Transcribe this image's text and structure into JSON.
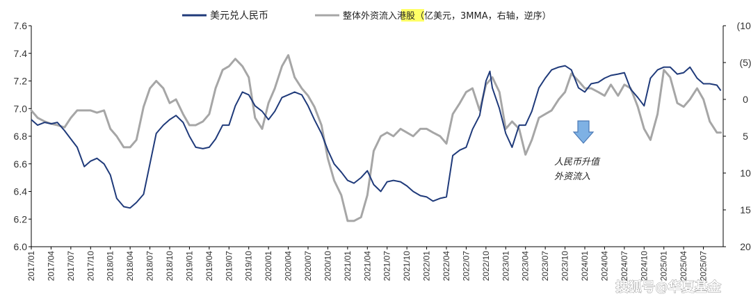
{
  "chart_data": {
    "type": "line",
    "title": "",
    "legend": {
      "placement": "top",
      "series1_label": "美元兑人民币",
      "series2_prefix": "整体外资流入",
      "series2_highlight": "港股",
      "series2_suffix": "（亿美元，3MMA，右轴，逆序）",
      "highlight_color": "#ffff66"
    },
    "left_axis": {
      "ylim": [
        6.0,
        7.6
      ],
      "ticks": [
        "6.0",
        "6.2",
        "6.4",
        "6.6",
        "6.8",
        "7.0",
        "7.2",
        "7.4",
        "7.6"
      ]
    },
    "right_axis": {
      "ylim_inverted": [
        -10,
        20
      ],
      "ticks": [
        "(10)",
        "(5)",
        "0",
        "5",
        "10",
        "15",
        "20"
      ],
      "tick_values": [
        -10,
        -5,
        0,
        5,
        10,
        15,
        20
      ]
    },
    "x_range": [
      2017.0,
      2025.75
    ],
    "x_ticks": [
      "2017/01",
      "2017/04",
      "2017/07",
      "2017/10",
      "2018/01",
      "2018/04",
      "2018/07",
      "2018/10",
      "2019/01",
      "2019/04",
      "2019/07",
      "2019/10",
      "2020/01",
      "2020/04",
      "2020/07",
      "2020/10",
      "2021/01",
      "2021/04",
      "2021/07",
      "2021/10",
      "2022/01",
      "2022/04",
      "2022/07",
      "2022/10",
      "2023/01",
      "2023/04",
      "2023/07",
      "2023/10",
      "2024/01",
      "2024/04",
      "2024/07",
      "2024/10",
      "2025/01",
      "2025/04",
      "2025/07"
    ],
    "series": [
      {
        "name": "美元兑人民币",
        "axis": "left",
        "color": "#1f3a7a",
        "points": [
          [
            2017.0,
            6.92
          ],
          [
            2017.08,
            6.88
          ],
          [
            2017.17,
            6.9
          ],
          [
            2017.25,
            6.89
          ],
          [
            2017.33,
            6.9
          ],
          [
            2017.42,
            6.84
          ],
          [
            2017.5,
            6.78
          ],
          [
            2017.58,
            6.72
          ],
          [
            2017.67,
            6.58
          ],
          [
            2017.75,
            6.62
          ],
          [
            2017.83,
            6.64
          ],
          [
            2017.92,
            6.6
          ],
          [
            2018.0,
            6.52
          ],
          [
            2018.08,
            6.35
          ],
          [
            2018.17,
            6.29
          ],
          [
            2018.25,
            6.28
          ],
          [
            2018.33,
            6.32
          ],
          [
            2018.42,
            6.38
          ],
          [
            2018.5,
            6.6
          ],
          [
            2018.58,
            6.82
          ],
          [
            2018.67,
            6.88
          ],
          [
            2018.75,
            6.92
          ],
          [
            2018.83,
            6.95
          ],
          [
            2018.92,
            6.9
          ],
          [
            2019.0,
            6.8
          ],
          [
            2019.08,
            6.72
          ],
          [
            2019.17,
            6.71
          ],
          [
            2019.25,
            6.72
          ],
          [
            2019.33,
            6.78
          ],
          [
            2019.42,
            6.88
          ],
          [
            2019.5,
            6.88
          ],
          [
            2019.58,
            7.02
          ],
          [
            2019.67,
            7.12
          ],
          [
            2019.75,
            7.1
          ],
          [
            2019.83,
            7.02
          ],
          [
            2019.92,
            6.98
          ],
          [
            2020.0,
            6.92
          ],
          [
            2020.08,
            6.98
          ],
          [
            2020.17,
            7.08
          ],
          [
            2020.25,
            7.1
          ],
          [
            2020.33,
            7.12
          ],
          [
            2020.42,
            7.1
          ],
          [
            2020.5,
            7.02
          ],
          [
            2020.58,
            6.92
          ],
          [
            2020.67,
            6.82
          ],
          [
            2020.75,
            6.7
          ],
          [
            2020.83,
            6.6
          ],
          [
            2020.92,
            6.54
          ],
          [
            2021.0,
            6.48
          ],
          [
            2021.08,
            6.46
          ],
          [
            2021.17,
            6.5
          ],
          [
            2021.25,
            6.55
          ],
          [
            2021.33,
            6.45
          ],
          [
            2021.42,
            6.4
          ],
          [
            2021.5,
            6.47
          ],
          [
            2021.58,
            6.48
          ],
          [
            2021.67,
            6.47
          ],
          [
            2021.75,
            6.44
          ],
          [
            2021.83,
            6.4
          ],
          [
            2021.92,
            6.37
          ],
          [
            2022.0,
            6.36
          ],
          [
            2022.08,
            6.33
          ],
          [
            2022.17,
            6.35
          ],
          [
            2022.25,
            6.36
          ],
          [
            2022.33,
            6.66
          ],
          [
            2022.42,
            6.7
          ],
          [
            2022.5,
            6.72
          ],
          [
            2022.58,
            6.85
          ],
          [
            2022.67,
            6.95
          ],
          [
            2022.75,
            7.2
          ],
          [
            2022.8,
            7.27
          ],
          [
            2022.83,
            7.15
          ],
          [
            2022.92,
            7.0
          ],
          [
            2023.0,
            6.82
          ],
          [
            2023.08,
            6.72
          ],
          [
            2023.17,
            6.88
          ],
          [
            2023.25,
            6.88
          ],
          [
            2023.33,
            6.98
          ],
          [
            2023.42,
            7.15
          ],
          [
            2023.5,
            7.22
          ],
          [
            2023.58,
            7.28
          ],
          [
            2023.67,
            7.3
          ],
          [
            2023.75,
            7.31
          ],
          [
            2023.83,
            7.28
          ],
          [
            2023.92,
            7.15
          ],
          [
            2024.0,
            7.12
          ],
          [
            2024.08,
            7.18
          ],
          [
            2024.17,
            7.19
          ],
          [
            2024.25,
            7.22
          ],
          [
            2024.33,
            7.24
          ],
          [
            2024.42,
            7.25
          ],
          [
            2024.5,
            7.26
          ],
          [
            2024.58,
            7.14
          ],
          [
            2024.67,
            7.08
          ],
          [
            2024.75,
            7.02
          ],
          [
            2024.83,
            7.22
          ],
          [
            2024.92,
            7.28
          ],
          [
            2025.0,
            7.3
          ],
          [
            2025.08,
            7.3
          ],
          [
            2025.17,
            7.25
          ],
          [
            2025.25,
            7.26
          ],
          [
            2025.33,
            7.3
          ],
          [
            2025.42,
            7.22
          ],
          [
            2025.5,
            7.18
          ],
          [
            2025.58,
            7.18
          ],
          [
            2025.67,
            7.17
          ],
          [
            2025.72,
            7.13
          ]
        ]
      },
      {
        "name": "整体外资流入港股（亿美元，3MMA，右轴，逆序）",
        "axis": "right",
        "color": "#a6a6a6",
        "points": [
          [
            2017.0,
            1.5
          ],
          [
            2017.08,
            2.5
          ],
          [
            2017.17,
            3.0
          ],
          [
            2017.25,
            3.3
          ],
          [
            2017.33,
            3.5
          ],
          [
            2017.42,
            3.8
          ],
          [
            2017.5,
            2.5
          ],
          [
            2017.58,
            1.5
          ],
          [
            2017.67,
            1.5
          ],
          [
            2017.75,
            1.5
          ],
          [
            2017.83,
            1.8
          ],
          [
            2017.92,
            1.5
          ],
          [
            2018.0,
            4.0
          ],
          [
            2018.08,
            5.0
          ],
          [
            2018.17,
            6.5
          ],
          [
            2018.25,
            6.5
          ],
          [
            2018.33,
            5.5
          ],
          [
            2018.42,
            1.0
          ],
          [
            2018.5,
            -1.5
          ],
          [
            2018.58,
            -2.5
          ],
          [
            2018.67,
            -1.5
          ],
          [
            2018.75,
            0.5
          ],
          [
            2018.83,
            0.0
          ],
          [
            2018.92,
            2.0
          ],
          [
            2019.0,
            3.5
          ],
          [
            2019.08,
            3.5
          ],
          [
            2019.17,
            3.0
          ],
          [
            2019.25,
            2.0
          ],
          [
            2019.33,
            -1.5
          ],
          [
            2019.42,
            -4.0
          ],
          [
            2019.5,
            -4.5
          ],
          [
            2019.58,
            -5.5
          ],
          [
            2019.67,
            -4.5
          ],
          [
            2019.75,
            -3.0
          ],
          [
            2019.83,
            2.5
          ],
          [
            2019.92,
            4.0
          ],
          [
            2020.0,
            0.5
          ],
          [
            2020.08,
            -1.5
          ],
          [
            2020.17,
            -4.5
          ],
          [
            2020.25,
            -6.0
          ],
          [
            2020.33,
            -3.0
          ],
          [
            2020.42,
            -1.5
          ],
          [
            2020.5,
            -0.5
          ],
          [
            2020.58,
            1.0
          ],
          [
            2020.67,
            3.5
          ],
          [
            2020.75,
            8.0
          ],
          [
            2020.83,
            11.0
          ],
          [
            2020.92,
            13.0
          ],
          [
            2021.0,
            16.5
          ],
          [
            2021.08,
            16.5
          ],
          [
            2021.17,
            16.0
          ],
          [
            2021.25,
            13.0
          ],
          [
            2021.33,
            7.0
          ],
          [
            2021.42,
            5.0
          ],
          [
            2021.5,
            4.5
          ],
          [
            2021.58,
            5.0
          ],
          [
            2021.67,
            4.0
          ],
          [
            2021.75,
            4.5
          ],
          [
            2021.83,
            5.0
          ],
          [
            2021.92,
            4.0
          ],
          [
            2022.0,
            4.0
          ],
          [
            2022.08,
            4.5
          ],
          [
            2022.17,
            5.0
          ],
          [
            2022.25,
            6.0
          ],
          [
            2022.33,
            2.0
          ],
          [
            2022.42,
            0.5
          ],
          [
            2022.5,
            -1.0
          ],
          [
            2022.58,
            -1.5
          ],
          [
            2022.67,
            1.5
          ],
          [
            2022.75,
            -2.0
          ],
          [
            2022.83,
            -3.0
          ],
          [
            2022.92,
            -1.0
          ],
          [
            2023.0,
            4.0
          ],
          [
            2023.08,
            3.0
          ],
          [
            2023.17,
            4.0
          ],
          [
            2023.25,
            7.5
          ],
          [
            2023.33,
            5.5
          ],
          [
            2023.42,
            2.5
          ],
          [
            2023.5,
            2.0
          ],
          [
            2023.58,
            1.5
          ],
          [
            2023.67,
            0.0
          ],
          [
            2023.75,
            -1.0
          ],
          [
            2023.83,
            -3.5
          ],
          [
            2023.92,
            -2.5
          ],
          [
            2024.0,
            -1.5
          ],
          [
            2024.08,
            -1.5
          ],
          [
            2024.17,
            -1.0
          ],
          [
            2024.25,
            -0.5
          ],
          [
            2024.33,
            -2.0
          ],
          [
            2024.42,
            -0.5
          ],
          [
            2024.5,
            -2.0
          ],
          [
            2024.58,
            -1.5
          ],
          [
            2024.67,
            1.0
          ],
          [
            2024.75,
            4.0
          ],
          [
            2024.83,
            5.5
          ],
          [
            2024.92,
            2.0
          ],
          [
            2025.0,
            -4.0
          ],
          [
            2025.08,
            -3.0
          ],
          [
            2025.17,
            0.5
          ],
          [
            2025.25,
            1.0
          ],
          [
            2025.33,
            0.0
          ],
          [
            2025.42,
            -1.5
          ],
          [
            2025.5,
            0.0
          ],
          [
            2025.58,
            3.0
          ],
          [
            2025.67,
            4.5
          ],
          [
            2025.72,
            4.5
          ]
        ]
      }
    ],
    "annotation": {
      "arrow_color": "#7eb1e4",
      "line1": "人民币升值",
      "line2": "外资流入"
    }
  },
  "watermark": "搜狐号@华夏基金"
}
